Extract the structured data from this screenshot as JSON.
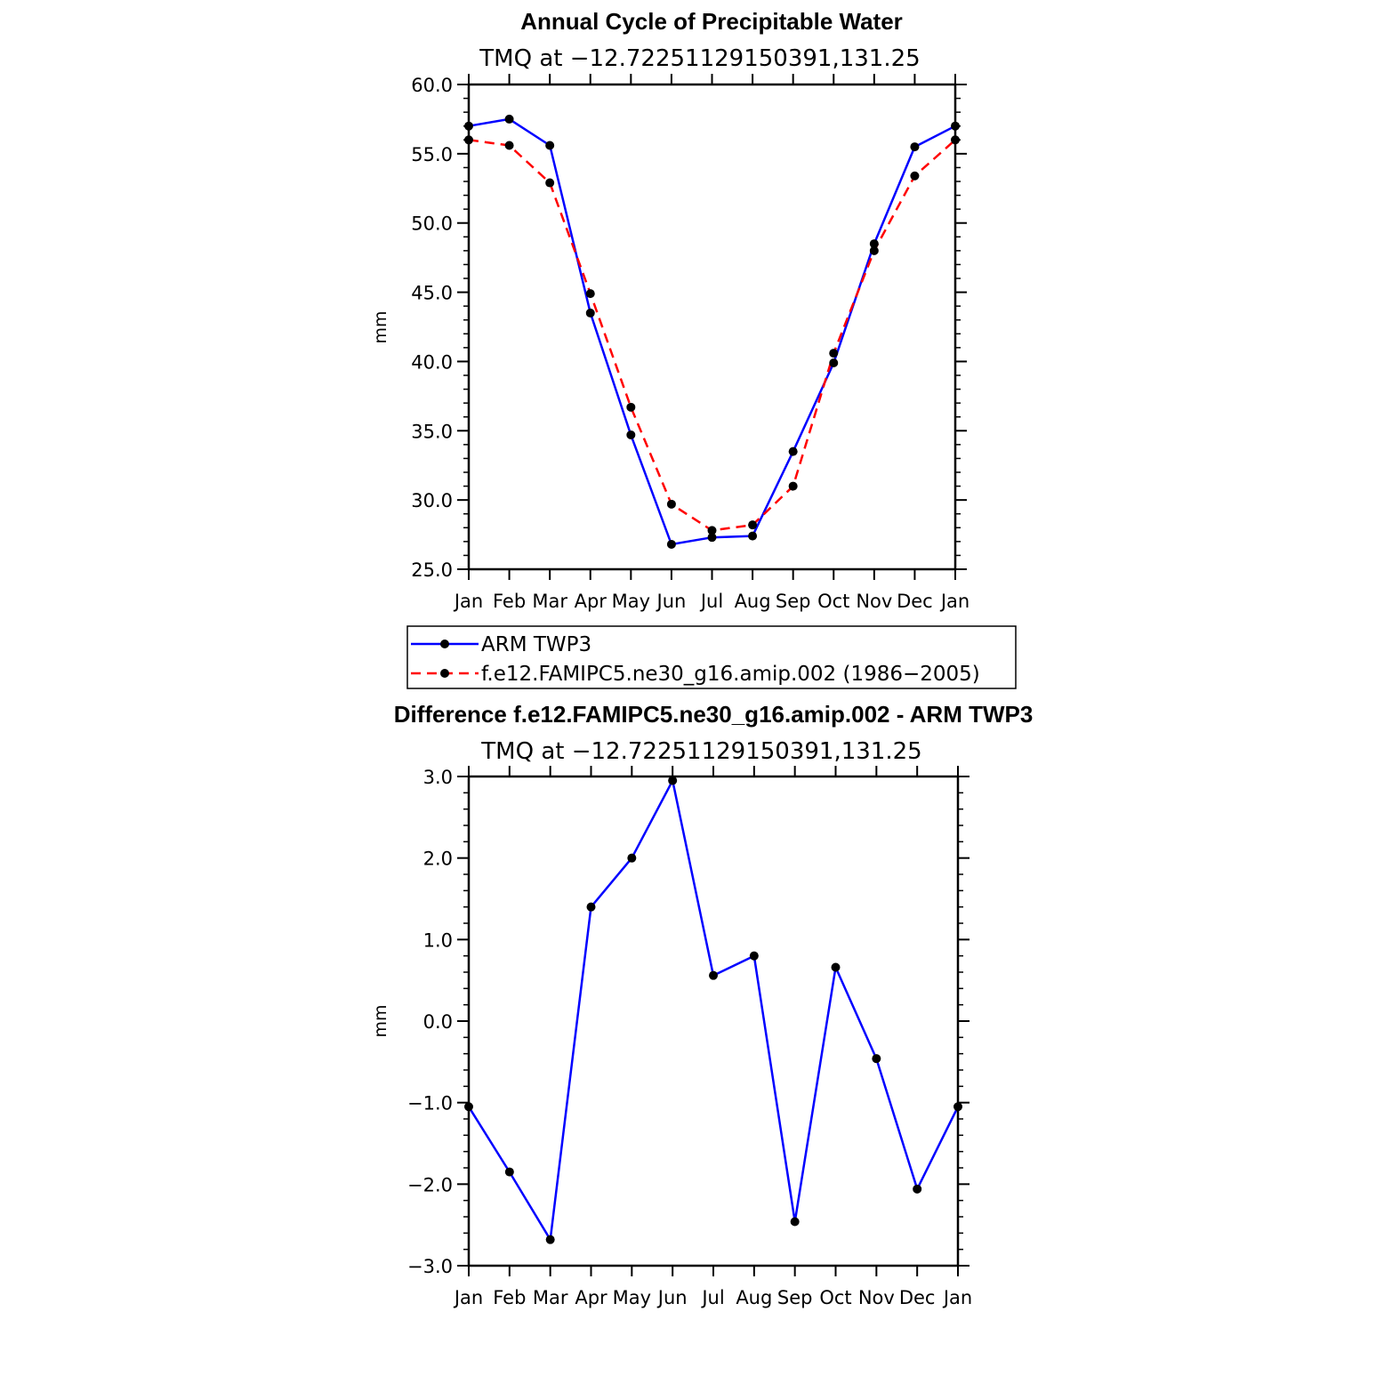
{
  "chart_data": [
    {
      "type": "line",
      "title": "Annual Cycle of Precipitable Water",
      "subtitle": "TMQ at −12.72251129150391,131.25",
      "xlabel": "",
      "ylabel": "mm",
      "categories": [
        "Jan",
        "Feb",
        "Mar",
        "Apr",
        "May",
        "Jun",
        "Jul",
        "Aug",
        "Sep",
        "Oct",
        "Nov",
        "Dec",
        "Jan"
      ],
      "ylim": [
        25.0,
        60.0
      ],
      "yticks": [
        "25.0",
        "30.0",
        "35.0",
        "40.0",
        "45.0",
        "50.0",
        "55.0",
        "60.0"
      ],
      "series": [
        {
          "name": "ARM TWP3",
          "color": "#0000ff",
          "dash": "solid",
          "values": [
            57.0,
            57.5,
            55.6,
            43.5,
            34.7,
            26.8,
            27.3,
            27.4,
            33.5,
            39.9,
            48.5,
            55.5,
            57.0
          ]
        },
        {
          "name": "f.e12.FAMIPC5.ne30_g16.amip.002 (1986−2005)",
          "color": "#ff0000",
          "dash": "dashed",
          "values": [
            56.0,
            55.6,
            52.9,
            44.9,
            36.7,
            29.7,
            27.8,
            28.2,
            31.0,
            40.6,
            48.0,
            53.4,
            56.0
          ]
        }
      ],
      "legend": {
        "position": "below",
        "entries": [
          "ARM TWP3",
          "f.e12.FAMIPC5.ne30_g16.amip.002 (1986−2005)"
        ]
      }
    },
    {
      "type": "line",
      "title": "Difference f.e12.FAMIPC5.ne30_g16.amip.002 - ARM TWP3",
      "subtitle": "TMQ at −12.72251129150391,131.25",
      "xlabel": "",
      "ylabel": "mm",
      "categories": [
        "Jan",
        "Feb",
        "Mar",
        "Apr",
        "May",
        "Jun",
        "Jul",
        "Aug",
        "Sep",
        "Oct",
        "Nov",
        "Dec",
        "Jan"
      ],
      "ylim": [
        -3.0,
        3.0
      ],
      "yticks": [
        "−3.0",
        "−2.0",
        "−1.0",
        "0.0",
        "1.0",
        "2.0",
        "3.0"
      ],
      "series": [
        {
          "name": "Difference",
          "color": "#0000ff",
          "dash": "solid",
          "values": [
            -1.05,
            -1.85,
            -2.68,
            1.4,
            2.0,
            2.95,
            0.56,
            0.8,
            -2.46,
            0.66,
            -0.46,
            -2.06,
            -1.05
          ]
        }
      ]
    }
  ]
}
